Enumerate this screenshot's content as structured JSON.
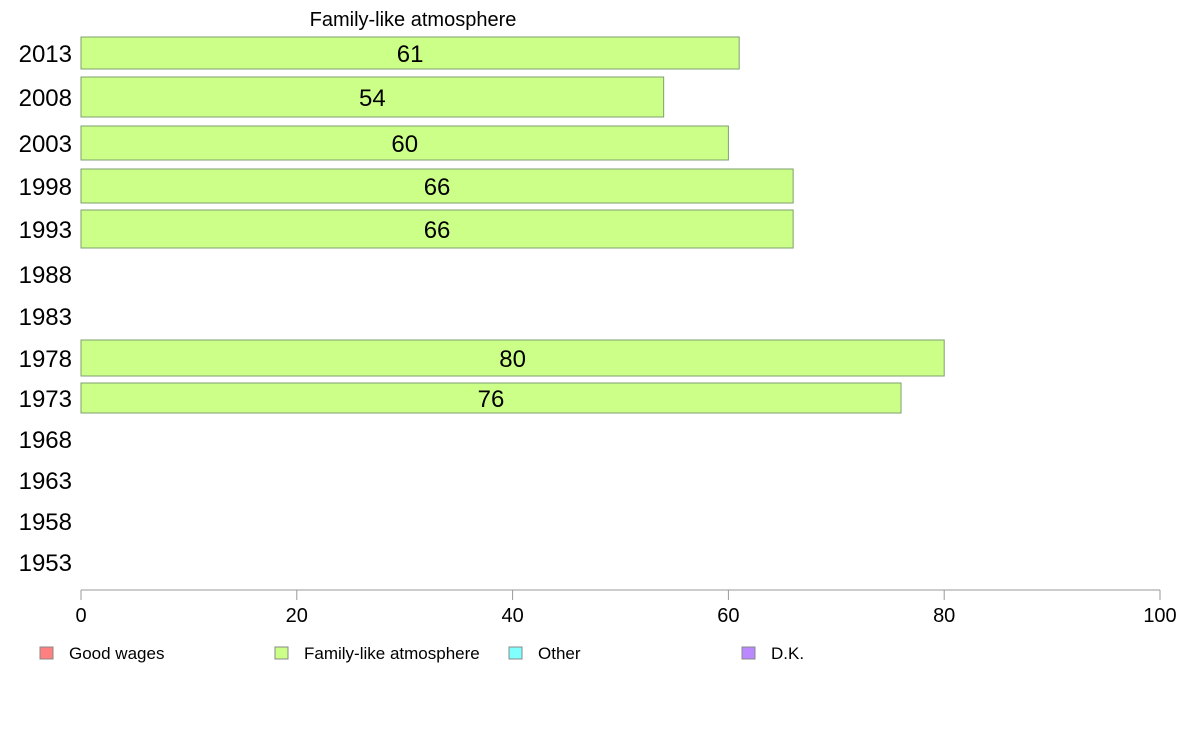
{
  "chart_data": {
    "type": "bar",
    "orientation": "horizontal",
    "stacked": true,
    "title": "Family-like atmosphere",
    "categories": [
      "2013",
      "2008",
      "2003",
      "1998",
      "1993",
      "1988",
      "1983",
      "1978",
      "1973",
      "1968",
      "1963",
      "1958",
      "1953"
    ],
    "series": [
      {
        "name": "Good wages",
        "color": "#ff8080",
        "values": [
          null,
          null,
          null,
          null,
          null,
          null,
          null,
          null,
          null,
          null,
          null,
          null,
          null
        ]
      },
      {
        "name": "Family-like atmosphere",
        "color": "#ccff88",
        "values": [
          61,
          54,
          60,
          66,
          66,
          null,
          null,
          80,
          76,
          null,
          null,
          null,
          null
        ]
      },
      {
        "name": "Other",
        "color": "#80ffff",
        "values": [
          null,
          null,
          null,
          null,
          null,
          null,
          null,
          null,
          null,
          null,
          null,
          null,
          null
        ]
      },
      {
        "name": "D.K.",
        "color": "#bb88ff",
        "values": [
          null,
          null,
          null,
          null,
          null,
          null,
          null,
          null,
          null,
          null,
          null,
          null,
          null
        ]
      }
    ],
    "bar_labels": [
      "61",
      "54",
      "60",
      "66",
      "66",
      "",
      "",
      "80",
      "76",
      "",
      "",
      "",
      ""
    ],
    "xlim": [
      0,
      100
    ],
    "xticks": [
      "0",
      "20",
      "40",
      "60",
      "80",
      "100"
    ],
    "grid": false,
    "legend_position": "bottom"
  }
}
